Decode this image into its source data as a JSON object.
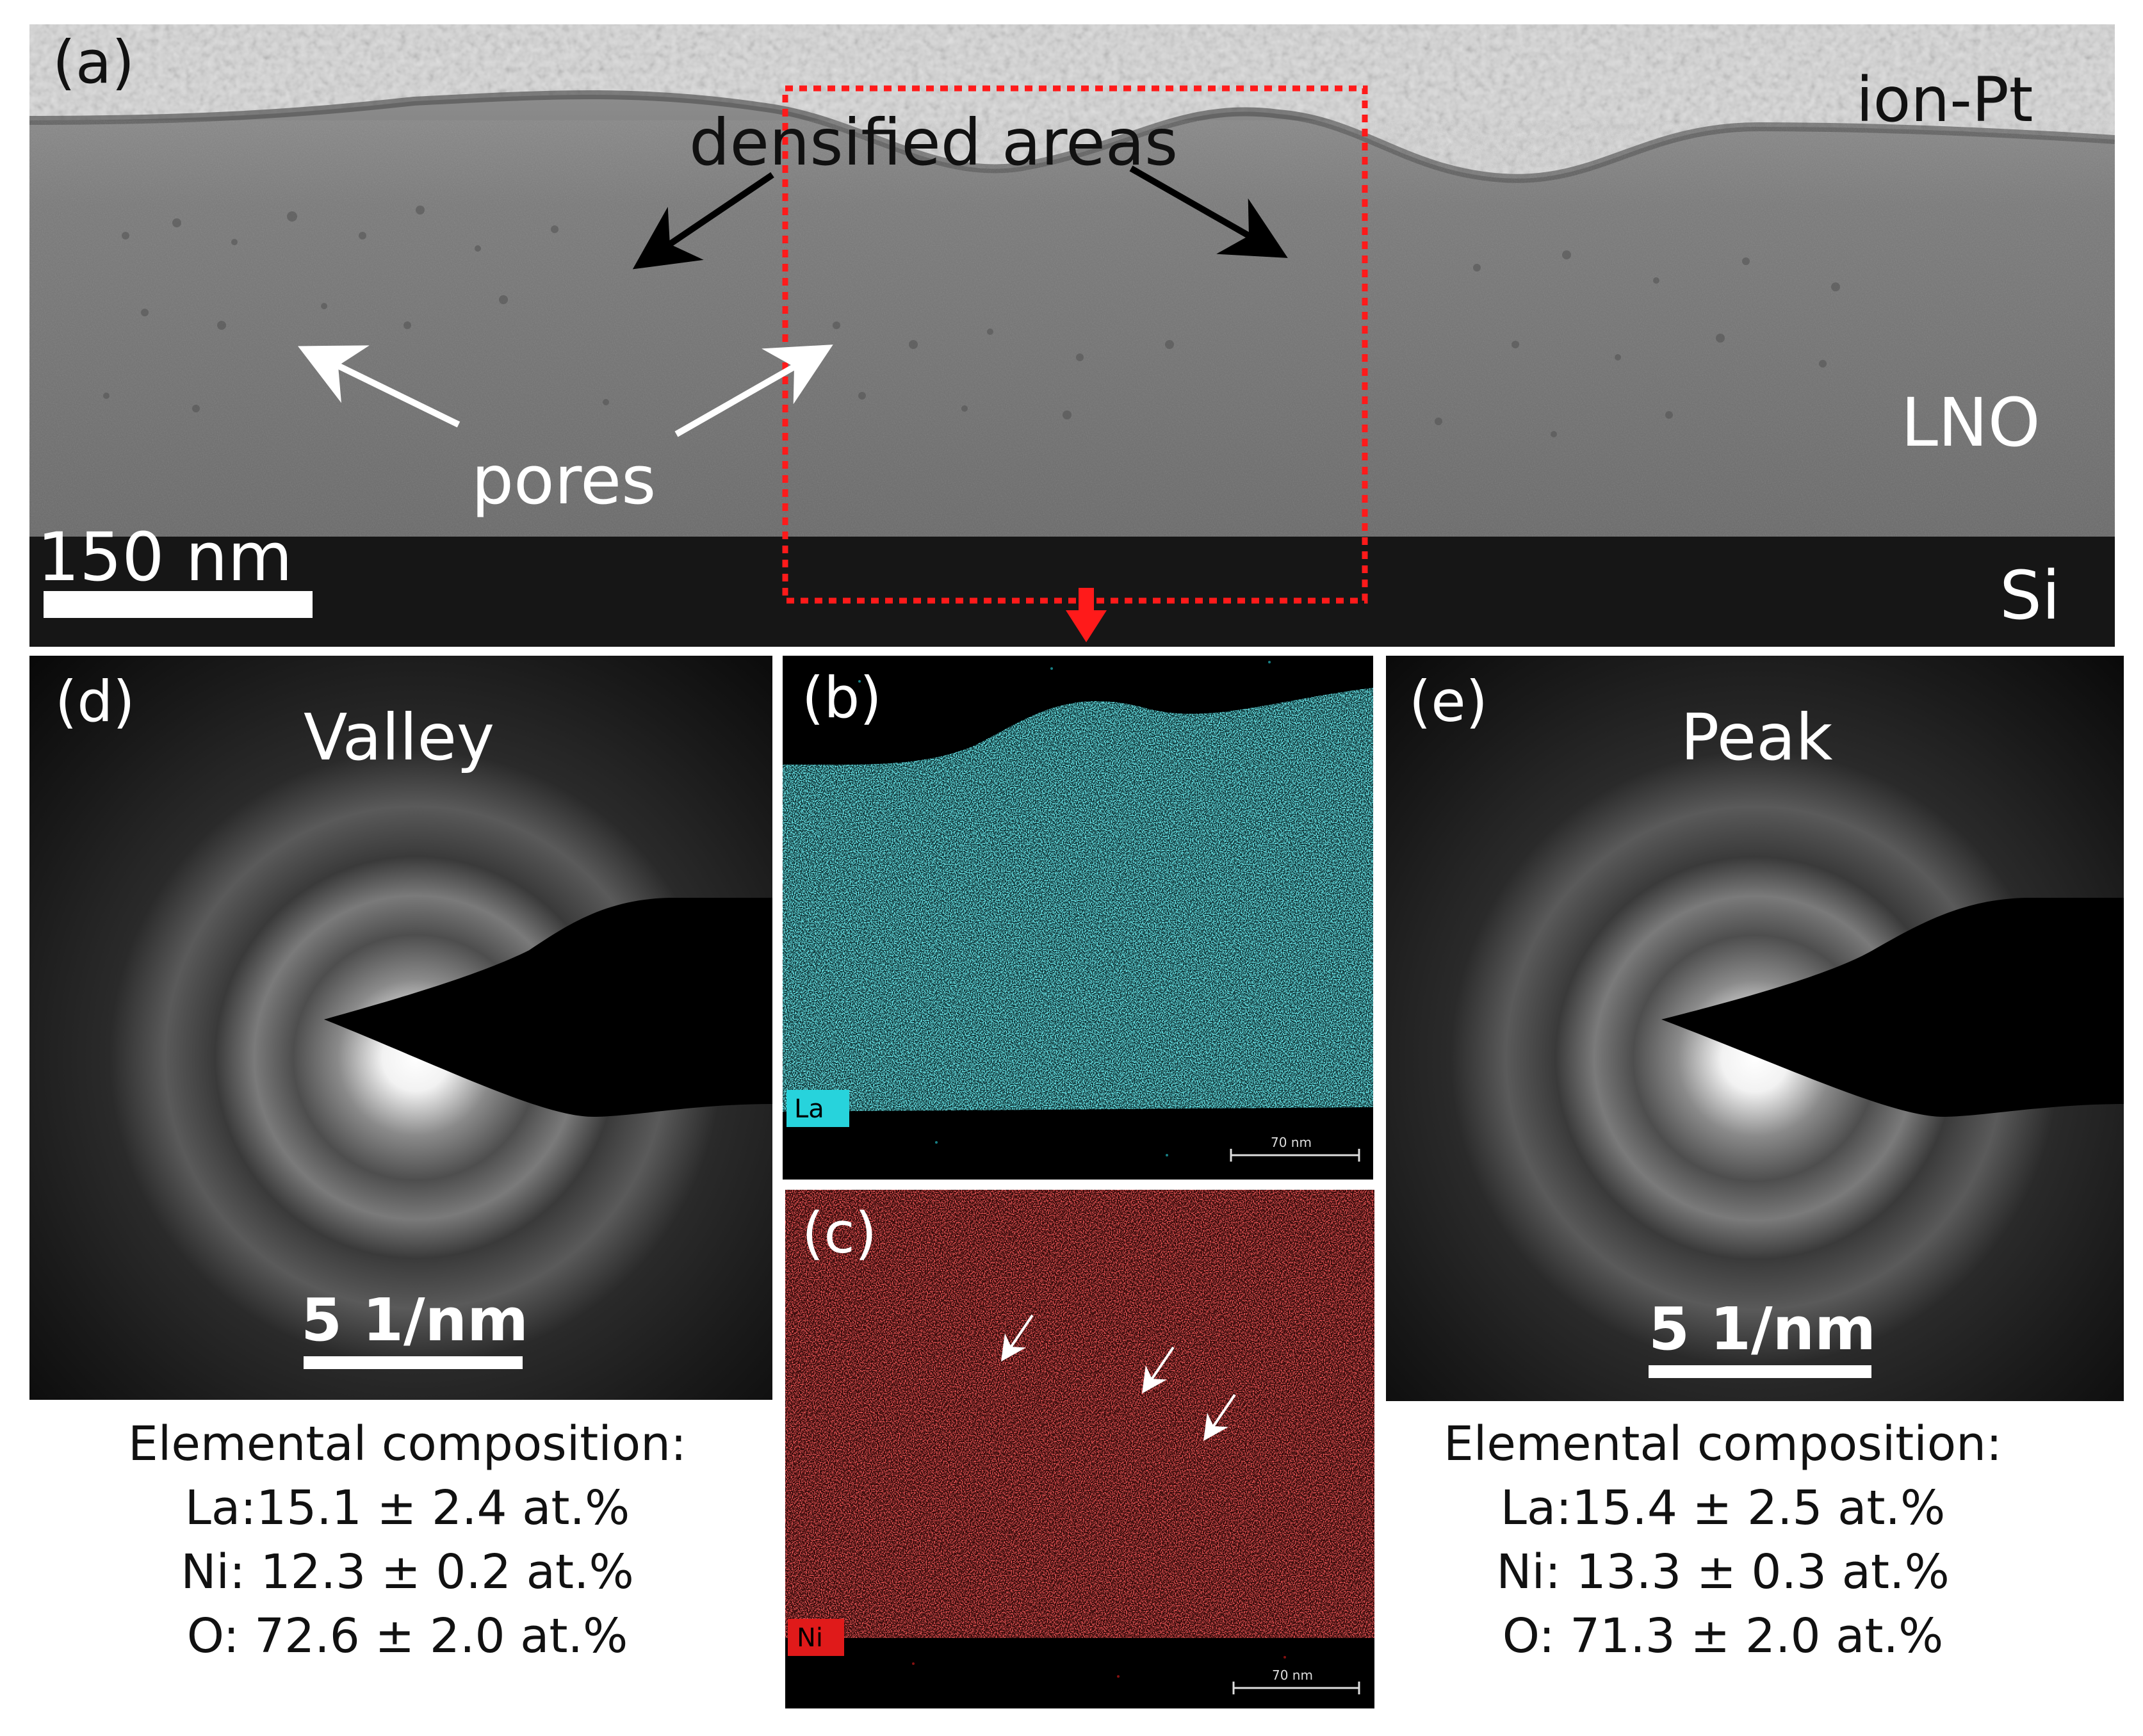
{
  "panel_a": {
    "tag": "(a)",
    "label_ionpt": "ion-Pt",
    "label_densified": "densified areas",
    "label_lno": "LNO",
    "label_pores": "pores",
    "label_si": "Si",
    "scalebar": "150 nm"
  },
  "panel_b": {
    "tag": "(b)",
    "element": "La",
    "scalebar": "70 nm",
    "color": "#27d3dc"
  },
  "panel_c": {
    "tag": "(c)",
    "element": "Ni",
    "scalebar": "70 nm",
    "color": "#e01a1a"
  },
  "panel_d": {
    "tag": "(d)",
    "title": "Valley",
    "scalebar": "5 1/nm",
    "composition_heading": "Elemental composition:",
    "composition": [
      "La:15.1 ± 2.4 at.%",
      "Ni: 12.3 ± 0.2 at.%",
      "O: 72.6 ± 2.0 at.%"
    ]
  },
  "panel_e": {
    "tag": "(e)",
    "title": "Peak",
    "scalebar": "5 1/nm",
    "composition_heading": "Elemental composition:",
    "composition": [
      "La:15.4 ± 2.5 at.%",
      "Ni: 13.3 ± 0.3 at.%",
      "O: 71.3 ± 2.0 at.%"
    ]
  },
  "colors": {
    "roi_box": "#ff1a1a",
    "arrow_dark": "#000000",
    "arrow_light": "#ffffff"
  }
}
